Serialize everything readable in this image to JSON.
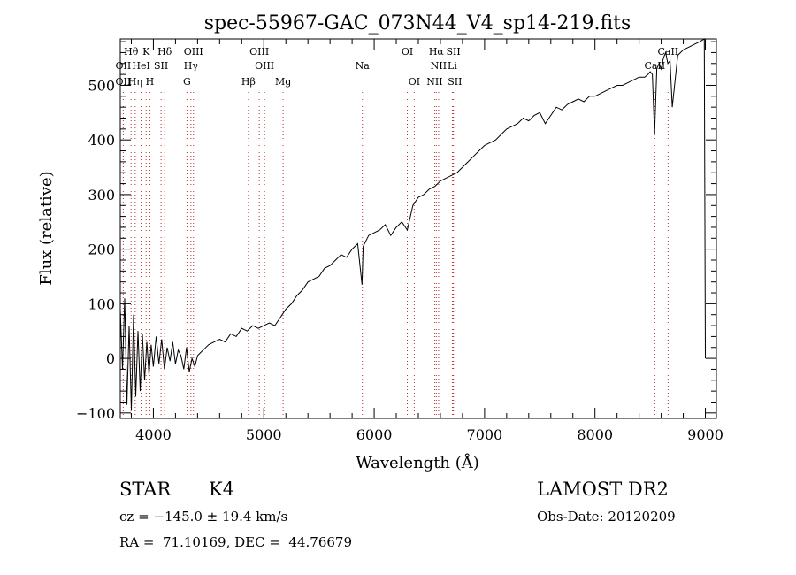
{
  "chart_data": {
    "type": "line",
    "title": "spec-55967-GAC_073N44_V4_sp14-219.fits",
    "xlabel": "Wavelength (Å)",
    "ylabel": "Flux (relative)",
    "xlim": [
      3700,
      9100
    ],
    "ylim": [
      -110,
      585
    ],
    "xticks": [
      4000,
      5000,
      6000,
      7000,
      8000,
      9000
    ],
    "yticks": [
      -100,
      0,
      100,
      200,
      300,
      400,
      500
    ],
    "grid": false,
    "series": [
      {
        "x": [
          3700,
          3720,
          3740,
          3760,
          3780,
          3800,
          3820,
          3840,
          3860,
          3880,
          3900,
          3920,
          3940,
          3960,
          3980,
          4000,
          4025,
          4050,
          4075,
          4100,
          4125,
          4150,
          4175,
          4200,
          4225,
          4250,
          4275,
          4300,
          4325,
          4350,
          4375,
          4400,
          4425,
          4450,
          4475,
          4500,
          4550,
          4600,
          4650,
          4700,
          4750,
          4800,
          4850,
          4900,
          4950,
          5000,
          5050,
          5100,
          5150,
          5200,
          5250,
          5300,
          5350,
          5400,
          5450,
          5500,
          5550,
          5600,
          5650,
          5700,
          5750,
          5800,
          5850,
          5890,
          5900,
          5950,
          6000,
          6050,
          6100,
          6150,
          6200,
          6250,
          6300,
          6350,
          6400,
          6450,
          6500,
          6550,
          6600,
          6650,
          6700,
          6750,
          6800,
          6850,
          6900,
          6950,
          7000,
          7050,
          7100,
          7150,
          7200,
          7250,
          7300,
          7350,
          7400,
          7450,
          7500,
          7550,
          7600,
          7650,
          7700,
          7750,
          7800,
          7850,
          7900,
          7950,
          8000,
          8050,
          8100,
          8150,
          8200,
          8250,
          8300,
          8350,
          8400,
          8450,
          8480,
          8500,
          8520,
          8540,
          8560,
          8580,
          8600,
          8620,
          8640,
          8660,
          8680,
          8700,
          8750,
          8800,
          8850,
          8900,
          8950,
          8990,
          9000
        ],
        "values": [
          90,
          -20,
          110,
          -85,
          60,
          -95,
          80,
          -70,
          50,
          -60,
          45,
          -40,
          30,
          -30,
          25,
          -15,
          40,
          -10,
          35,
          -20,
          20,
          -5,
          30,
          -10,
          15,
          5,
          -20,
          20,
          -25,
          0,
          -15,
          5,
          10,
          15,
          20,
          25,
          30,
          35,
          30,
          45,
          40,
          55,
          50,
          60,
          55,
          60,
          65,
          60,
          75,
          90,
          100,
          115,
          125,
          140,
          145,
          150,
          165,
          170,
          180,
          190,
          185,
          200,
          210,
          135,
          205,
          225,
          230,
          235,
          245,
          225,
          240,
          250,
          235,
          280,
          295,
          300,
          310,
          315,
          325,
          330,
          335,
          340,
          350,
          360,
          370,
          380,
          390,
          395,
          400,
          410,
          420,
          425,
          430,
          440,
          435,
          445,
          450,
          430,
          445,
          460,
          455,
          465,
          470,
          475,
          470,
          480,
          480,
          485,
          490,
          495,
          500,
          500,
          505,
          510,
          515,
          515,
          520,
          525,
          520,
          410,
          530,
          540,
          530,
          550,
          560,
          540,
          545,
          460,
          555,
          565,
          570,
          575,
          580,
          585,
          0
        ]
      }
    ],
    "spectral_lines": [
      {
        "label": "Hθ",
        "x": 3798,
        "row": 0
      },
      {
        "label": "K",
        "x": 3934,
        "row": 0
      },
      {
        "label": "Hδ",
        "x": 4102,
        "row": 0
      },
      {
        "label": "OIII",
        "x": 4363,
        "row": 0
      },
      {
        "label": "OIII",
        "x": 4959,
        "row": 0
      },
      {
        "label": "OI",
        "x": 6300,
        "row": 0
      },
      {
        "label": "Hα",
        "x": 6563,
        "row": 0
      },
      {
        "label": "SII",
        "x": 6717,
        "row": 0
      },
      {
        "label": "CaII",
        "x": 8662,
        "row": 0
      },
      {
        "label": "OII",
        "x": 3727,
        "row": 1
      },
      {
        "label": "HeI",
        "x": 3889,
        "row": 1
      },
      {
        "label": "SII",
        "x": 4069,
        "row": 1
      },
      {
        "label": "Hγ",
        "x": 4340,
        "row": 1
      },
      {
        "label": "OIII",
        "x": 5007,
        "row": 1
      },
      {
        "label": "Na",
        "x": 5893,
        "row": 1
      },
      {
        "label": "NII",
        "x": 6584,
        "row": 1
      },
      {
        "label": "Li",
        "x": 6708,
        "row": 1
      },
      {
        "label": "CaII",
        "x": 8542,
        "row": 1
      },
      {
        "label": "OII",
        "x": 3727,
        "row": 2
      },
      {
        "label": "Hη",
        "x": 3835,
        "row": 2
      },
      {
        "label": "H",
        "x": 3968,
        "row": 2
      },
      {
        "label": "G",
        "x": 4304,
        "row": 2
      },
      {
        "label": "Hβ",
        "x": 4861,
        "row": 2
      },
      {
        "label": "Mg",
        "x": 5175,
        "row": 2
      },
      {
        "label": "OI",
        "x": 6363,
        "row": 2
      },
      {
        "label": "NII",
        "x": 6548,
        "row": 2
      },
      {
        "label": "SII",
        "x": 6731,
        "row": 2
      }
    ]
  },
  "info": {
    "class_label": "STAR",
    "subclass": "K4",
    "survey": "LAMOST DR2",
    "cz": "cz = −145.0 ± 19.4 km/s",
    "obs_date": "Obs-Date: 20120209",
    "radec": "RA =  71.10169, DEC =  44.76679"
  }
}
